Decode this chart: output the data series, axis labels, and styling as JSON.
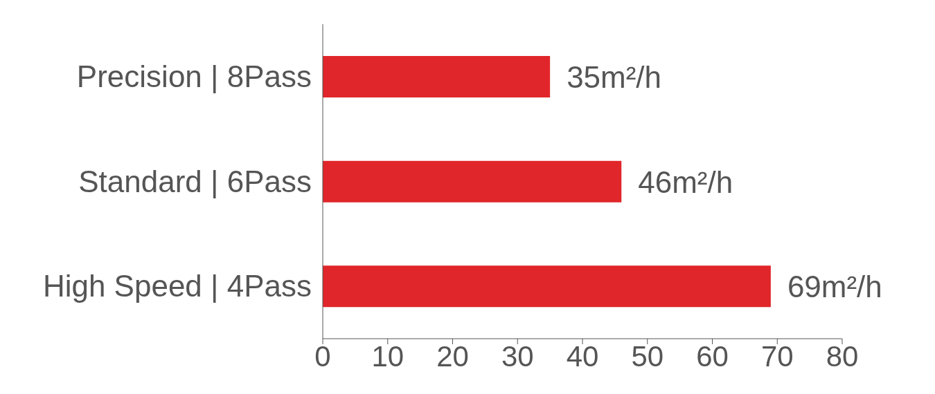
{
  "chart_data": {
    "type": "bar",
    "orientation": "horizontal",
    "categories": [
      "Precision | 8Pass",
      "Standard | 6Pass",
      "High Speed | 4Pass"
    ],
    "values": [
      35,
      46,
      69
    ],
    "color": "#e0262a",
    "value_labels": [
      "35m²/h",
      "46m²/h",
      "69m²/h"
    ],
    "xlim": [
      0,
      80
    ],
    "xticks": [
      0,
      10,
      20,
      30,
      40,
      50,
      60,
      70,
      80
    ],
    "grid": false,
    "legend": false
  }
}
